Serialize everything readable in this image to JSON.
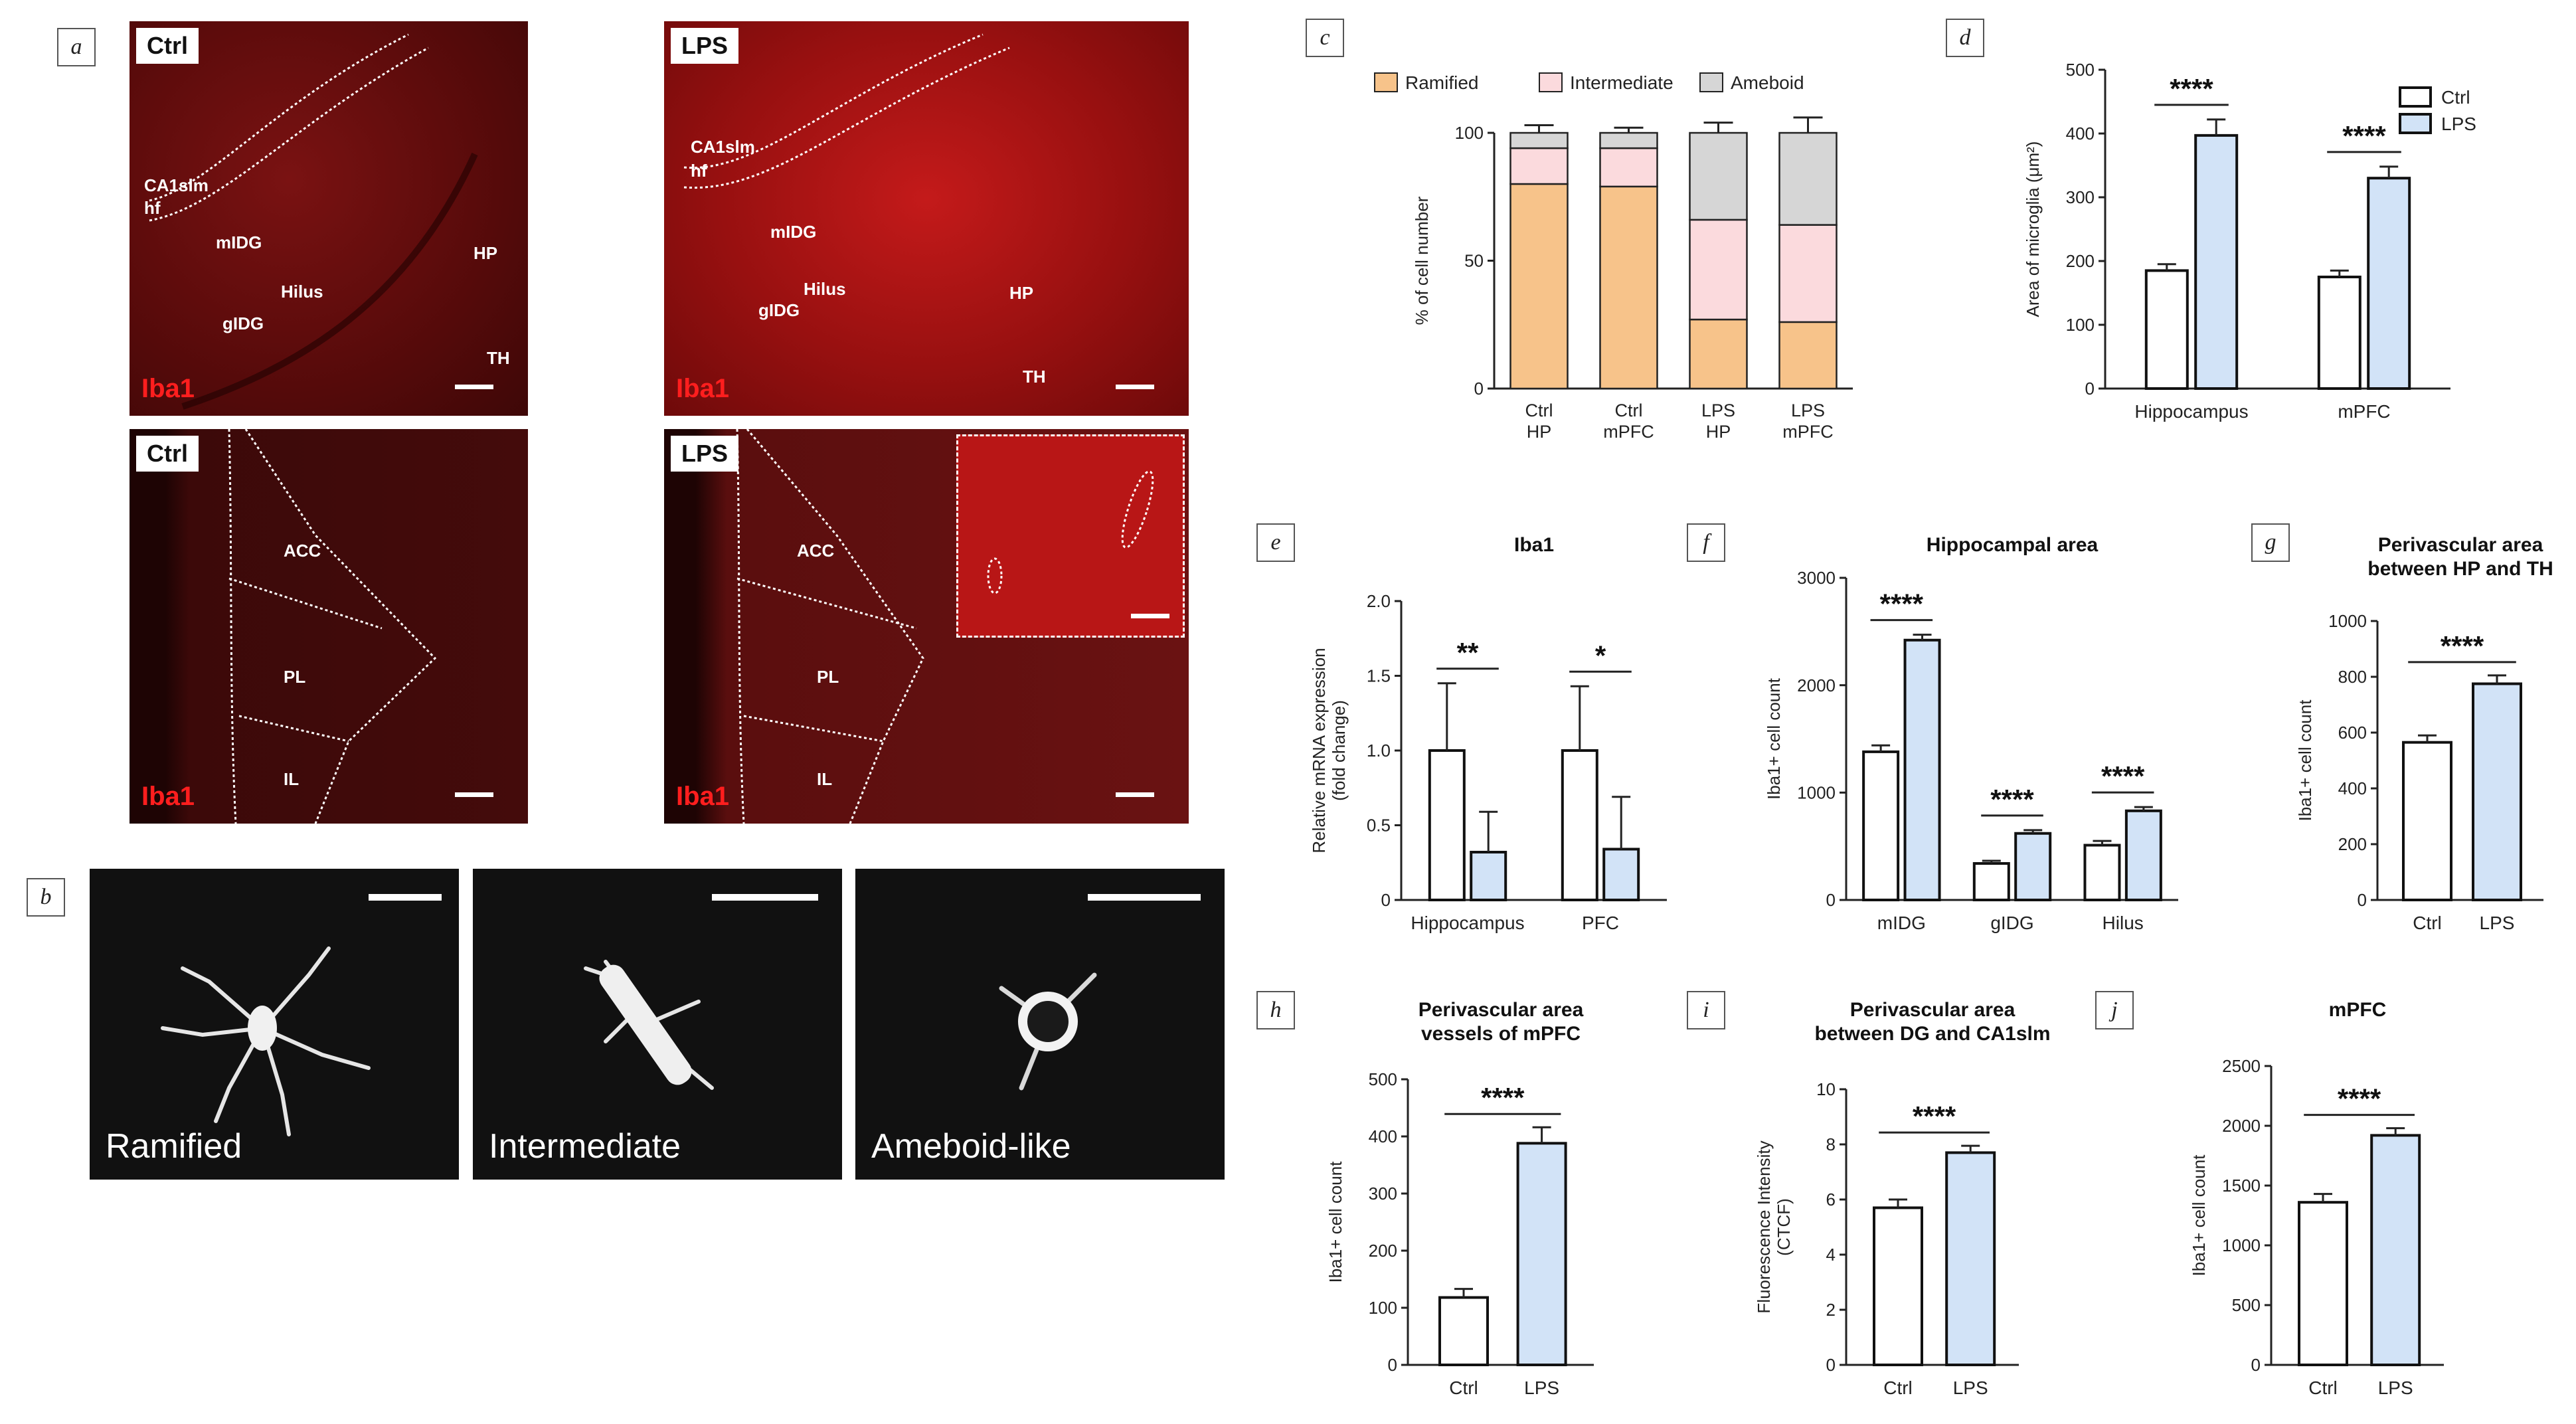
{
  "panels": {
    "a": "a",
    "b": "b",
    "c": "c",
    "d": "d",
    "e": "e",
    "f": "f",
    "g": "g",
    "h": "h",
    "i": "i",
    "j": "j"
  },
  "micrographs": {
    "hp_ctrl": {
      "tag": "Ctrl",
      "stain": "Iba1",
      "regions": {
        "ca1slm": "CA1slm",
        "hf": "hf",
        "midg": "mIDG",
        "hilus": "Hilus",
        "gidg": "gIDG",
        "hp": "HP",
        "th": "TH"
      }
    },
    "hp_lps": {
      "tag": "LPS",
      "stain": "Iba1",
      "regions": {
        "ca1slm": "CA1slm",
        "hf": "hf",
        "midg": "mIDG",
        "hilus": "Hilus",
        "gidg": "gIDG",
        "hp": "HP",
        "th": "TH"
      }
    },
    "pfc_ctrl": {
      "tag": "Ctrl",
      "stain": "Iba1",
      "regions": {
        "acc": "ACC",
        "pl": "PL",
        "il": "IL"
      }
    },
    "pfc_lps": {
      "tag": "LPS",
      "stain": "Iba1",
      "regions": {
        "acc": "ACC",
        "pl": "PL",
        "il": "IL"
      }
    }
  },
  "morphology": [
    "Ramified",
    "Intermediate",
    "Ameboid-like"
  ],
  "colors": {
    "ctrl": "#ffffff",
    "lps": "#d2e3f7",
    "ramified": "#f7c38a",
    "intermediate": "#fbdadd",
    "ameboid": "#d6d6d6",
    "stain": "#ff1e1e"
  },
  "chart_data": [
    {
      "id": "c",
      "type": "bar",
      "stacked": true,
      "title": "",
      "ylabel": "% of cell number",
      "ylim": [
        0,
        100
      ],
      "yticks": [
        0,
        50,
        100
      ],
      "categories": [
        [
          "Ctrl",
          "HP"
        ],
        [
          "Ctrl",
          "mPFC"
        ],
        [
          "LPS",
          "HP"
        ],
        [
          "LPS",
          "mPFC"
        ]
      ],
      "series": [
        {
          "name": "Ramified",
          "values": [
            80,
            79,
            27,
            26
          ],
          "err": [
            4,
            3,
            5,
            6
          ]
        },
        {
          "name": "Intermediate",
          "values": [
            14,
            15,
            39,
            38
          ],
          "err": [
            2,
            2,
            5,
            4
          ]
        },
        {
          "name": "Ameboid",
          "values": [
            6,
            6,
            34,
            36
          ],
          "err": [
            3,
            2,
            4,
            6
          ]
        }
      ],
      "legend": "top"
    },
    {
      "id": "d",
      "type": "bar",
      "title": "",
      "ylabel": "Area of microglia (μm²)",
      "ylim": [
        0,
        500
      ],
      "yticks": [
        0,
        100,
        200,
        300,
        400,
        500
      ],
      "categories": [
        "Hippocampus",
        "mPFC"
      ],
      "series": [
        {
          "name": "Ctrl",
          "values": [
            185,
            175
          ],
          "err": [
            10,
            10
          ]
        },
        {
          "name": "LPS",
          "values": [
            397,
            330
          ],
          "err": [
            25,
            18
          ]
        }
      ],
      "sig": [
        "****",
        "****"
      ],
      "legend": "top-right"
    },
    {
      "id": "e",
      "type": "bar",
      "title": "Iba1",
      "ylabel": "Relative mRNA expression (fold change)",
      "ylim": [
        0,
        2.0
      ],
      "yticks": [
        "0",
        "0.5",
        "1.0",
        "1.5",
        "2.0"
      ],
      "categories": [
        "Hippocampus",
        "PFC"
      ],
      "series": [
        {
          "name": "Ctrl",
          "values": [
            1.0,
            1.0
          ],
          "err": [
            0.45,
            0.43
          ]
        },
        {
          "name": "LPS",
          "values": [
            0.32,
            0.34
          ],
          "err": [
            0.27,
            0.35
          ]
        }
      ],
      "sig": [
        "**",
        "*"
      ]
    },
    {
      "id": "f",
      "type": "bar",
      "title": "Hippocampal area",
      "ylabel": "Iba1+ cell count",
      "ylim": [
        0,
        3000
      ],
      "yticks": [
        0,
        1000,
        2000,
        3000
      ],
      "categories": [
        "mIDG",
        "gIDG",
        "Hilus"
      ],
      "series": [
        {
          "name": "Ctrl",
          "values": [
            1380,
            340,
            510
          ],
          "err": [
            60,
            25,
            40
          ]
        },
        {
          "name": "LPS",
          "values": [
            2420,
            620,
            830
          ],
          "err": [
            50,
            30,
            35
          ]
        }
      ],
      "sig": [
        "****",
        "****",
        "****"
      ]
    },
    {
      "id": "g",
      "type": "bar",
      "title": "Perivascular area between HP and TH",
      "ylabel": "Iba1+ cell count",
      "ylim": [
        0,
        1000
      ],
      "yticks": [
        0,
        200,
        400,
        600,
        800,
        1000
      ],
      "categories": [
        "Ctrl",
        "LPS"
      ],
      "values": [
        565,
        775
      ],
      "err": [
        25,
        30
      ],
      "sig": [
        "****"
      ]
    },
    {
      "id": "h",
      "type": "bar",
      "title": "Perivascular area vessels of mPFC",
      "ylabel": "Iba1+ cell count",
      "ylim": [
        0,
        500
      ],
      "yticks": [
        0,
        100,
        200,
        300,
        400,
        500
      ],
      "categories": [
        "Ctrl",
        "LPS"
      ],
      "values": [
        118,
        388
      ],
      "err": [
        15,
        28
      ],
      "sig": [
        "****"
      ]
    },
    {
      "id": "i",
      "type": "bar",
      "title": "Perivascular area between DG and CA1slm",
      "ylabel": "Fluorescence Intensity (CTCF)",
      "ylim": [
        0,
        10
      ],
      "yticks": [
        0,
        2,
        4,
        6,
        8,
        10
      ],
      "categories": [
        "Ctrl",
        "LPS"
      ],
      "values": [
        5.7,
        7.7
      ],
      "err": [
        0.3,
        0.25
      ],
      "sig": [
        "****"
      ]
    },
    {
      "id": "j",
      "type": "bar",
      "title": "mPFC",
      "ylabel": "Iba1+ cell count",
      "ylim": [
        0,
        2500
      ],
      "yticks": [
        0,
        500,
        1000,
        1500,
        2000,
        2500
      ],
      "categories": [
        "Ctrl",
        "LPS"
      ],
      "values": [
        1360,
        1920
      ],
      "err": [
        70,
        60
      ],
      "sig": [
        "****"
      ]
    }
  ]
}
